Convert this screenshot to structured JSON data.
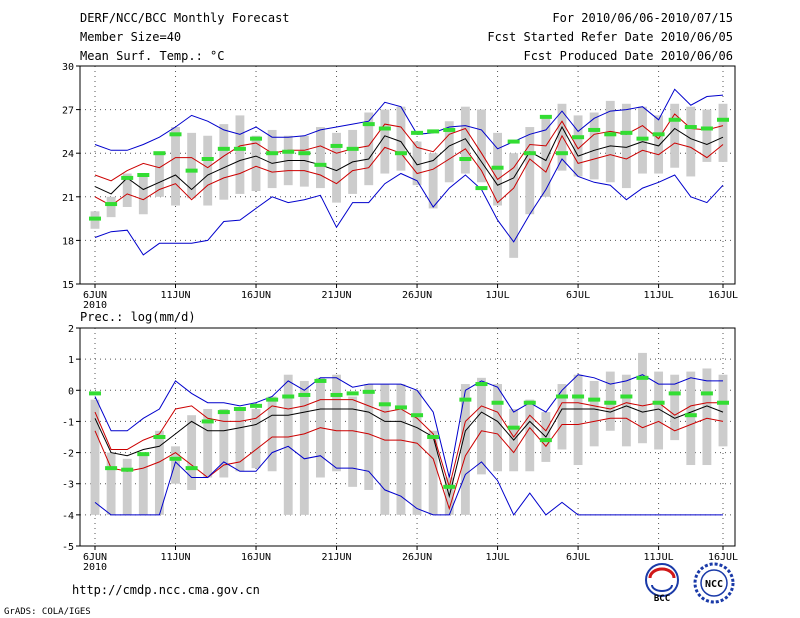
{
  "header": {
    "title": "DERF/NCC/BCC Monthly Forecast",
    "member": "Member Size=40",
    "variable": "Mean Surf. Temp.: °C",
    "period": "For 2010/06/06-2010/07/15",
    "start": "Fcst Started Refer Date 2010/06/05",
    "produced": "Fcst Produced Date 2010/06/06"
  },
  "footer": {
    "url": "http://cmdp.ncc.cma.gov.cn",
    "grads": "GrADS: COLA/IGES",
    "logo_bcc": "BCC",
    "logo_ncc": "NCC"
  },
  "colors": {
    "box": "#cccccc",
    "median": "#33dd33",
    "max_min": "#0000cc",
    "quartile": "#cc0000",
    "mean": "#000000",
    "grid": "#555555"
  },
  "chart_data": [
    {
      "type": "line",
      "title": "Mean Surf. Temp.: °C",
      "xlabel": "",
      "ylabel": "°C",
      "x": [
        1,
        2,
        3,
        4,
        5,
        6,
        7,
        8,
        9,
        10,
        11,
        12,
        13,
        14,
        15,
        16,
        17,
        18,
        19,
        20,
        21,
        22,
        23,
        24,
        25,
        26,
        27,
        28,
        29,
        30,
        31,
        32,
        33,
        34,
        35,
        36,
        37,
        38,
        39,
        40
      ],
      "xticks": [
        {
          "x": 1,
          "label": "6JUN",
          "sub": "2010"
        },
        {
          "x": 6,
          "label": "11JUN"
        },
        {
          "x": 11,
          "label": "16JUN"
        },
        {
          "x": 16,
          "label": "21JUN"
        },
        {
          "x": 21,
          "label": "26JUN"
        },
        {
          "x": 26,
          "label": "1JUL"
        },
        {
          "x": 31,
          "label": "6JUL"
        },
        {
          "x": 36,
          "label": "11JUL"
        },
        {
          "x": 40,
          "label": "16JUL"
        }
      ],
      "ylim": [
        15,
        30
      ],
      "yticks": [
        15,
        18,
        21,
        24,
        27,
        30
      ],
      "grid": true,
      "series": [
        {
          "name": "max",
          "color": "#0000cc",
          "values": [
            24.6,
            24.2,
            24.2,
            24.6,
            25.1,
            25.8,
            26.6,
            26.2,
            25.6,
            25.3,
            25.8,
            25.1,
            25.1,
            25.2,
            25.6,
            25.8,
            26.0,
            26.2,
            27.5,
            27.2,
            25.3,
            25.4,
            25.8,
            25.9,
            25.6,
            24.3,
            24.8,
            25.3,
            25.6,
            26.9,
            25.5,
            26.4,
            26.9,
            27.0,
            27.2,
            26.3,
            28.4,
            27.3,
            27.9,
            28.0
          ]
        },
        {
          "name": "upper_quartile",
          "color": "#cc0000",
          "values": [
            22.5,
            22.1,
            22.8,
            23.3,
            23.0,
            23.7,
            23.7,
            23.0,
            23.8,
            24.5,
            24.7,
            24.0,
            24.2,
            24.2,
            24.5,
            24.0,
            24.3,
            24.5,
            26.0,
            25.8,
            24.4,
            24.1,
            25.3,
            25.7,
            24.0,
            22.2,
            23.0,
            24.6,
            24.5,
            26.2,
            24.3,
            25.3,
            25.5,
            25.3,
            25.9,
            25.0,
            26.7,
            25.7,
            25.6,
            25.9
          ]
        },
        {
          "name": "mean",
          "color": "#000000",
          "values": [
            21.7,
            21.2,
            22.3,
            21.5,
            22.0,
            22.5,
            21.5,
            22.5,
            23.0,
            23.5,
            23.8,
            23.3,
            23.5,
            23.5,
            23.2,
            22.8,
            23.4,
            23.6,
            25.2,
            24.8,
            23.2,
            23.5,
            24.5,
            25.0,
            23.4,
            21.8,
            22.3,
            24.1,
            23.5,
            25.8,
            23.8,
            24.2,
            24.5,
            24.4,
            24.8,
            24.5,
            25.7,
            25.0,
            24.6,
            25.1
          ]
        },
        {
          "name": "lower_quartile",
          "color": "#cc0000",
          "values": [
            21.0,
            20.4,
            21.2,
            20.8,
            21.5,
            21.9,
            20.8,
            21.8,
            22.3,
            22.6,
            23.1,
            22.7,
            22.8,
            22.8,
            22.5,
            21.9,
            22.8,
            23.0,
            24.4,
            24.0,
            22.6,
            22.9,
            23.6,
            24.3,
            22.8,
            20.6,
            21.6,
            23.6,
            22.7,
            25.2,
            23.3,
            23.6,
            23.9,
            23.6,
            24.2,
            23.9,
            24.7,
            24.4,
            23.7,
            24.6
          ]
        },
        {
          "name": "min",
          "color": "#0000cc",
          "values": [
            18.2,
            18.6,
            18.7,
            17.0,
            17.8,
            17.8,
            17.8,
            18.0,
            19.3,
            19.4,
            20.2,
            21.0,
            20.6,
            20.8,
            21.1,
            18.9,
            20.6,
            20.6,
            21.9,
            22.6,
            22.1,
            20.3,
            21.6,
            22.5,
            21.5,
            19.4,
            17.9,
            19.8,
            21.5,
            23.6,
            22.4,
            22.0,
            21.8,
            20.8,
            21.6,
            22.0,
            22.5,
            21.0,
            20.6,
            21.8
          ]
        }
      ],
      "box_low": [
        18.8,
        19.6,
        20.3,
        19.8,
        21.0,
        20.4,
        20.9,
        20.4,
        20.8,
        21.2,
        21.4,
        21.6,
        21.8,
        21.7,
        21.6,
        20.6,
        21.2,
        21.8,
        22.6,
        22.8,
        21.8,
        20.2,
        22.0,
        22.6,
        22.0,
        20.4,
        16.8,
        19.8,
        21.0,
        22.8,
        22.4,
        22.2,
        22.0,
        21.6,
        22.6,
        22.6,
        23.0,
        22.4,
        23.4,
        23.4
      ],
      "box_high": [
        20.0,
        21.0,
        22.6,
        22.6,
        24.0,
        25.8,
        25.4,
        25.2,
        26.0,
        26.6,
        25.2,
        25.6,
        25.2,
        25.2,
        25.8,
        25.4,
        25.6,
        26.8,
        27.0,
        27.2,
        24.8,
        24.0,
        26.2,
        27.2,
        27.0,
        25.4,
        24.0,
        25.8,
        26.5,
        27.4,
        26.6,
        26.8,
        27.6,
        27.4,
        27.2,
        26.6,
        27.4,
        27.2,
        27.0,
        27.4
      ],
      "medians": [
        19.5,
        20.5,
        22.3,
        22.5,
        24.0,
        25.3,
        22.8,
        23.6,
        24.3,
        24.3,
        25.0,
        24.0,
        24.1,
        24.0,
        23.2,
        24.5,
        24.3,
        26.0,
        25.7,
        24.0,
        25.4,
        25.5,
        25.6,
        23.6,
        21.6,
        23.0,
        24.8,
        24.0,
        26.5,
        24.0,
        25.1,
        25.6,
        25.3,
        25.4,
        25.0,
        25.3,
        26.3,
        25.8,
        25.7,
        26.3
      ]
    },
    {
      "type": "line",
      "title": "Prec.: log(mm/d)",
      "xlabel": "",
      "ylabel": "log(mm/d)",
      "x": [
        1,
        2,
        3,
        4,
        5,
        6,
        7,
        8,
        9,
        10,
        11,
        12,
        13,
        14,
        15,
        16,
        17,
        18,
        19,
        20,
        21,
        22,
        23,
        24,
        25,
        26,
        27,
        28,
        29,
        30,
        31,
        32,
        33,
        34,
        35,
        36,
        37,
        38,
        39,
        40
      ],
      "xticks": [
        {
          "x": 1,
          "label": "6JUN",
          "sub": "2010"
        },
        {
          "x": 6,
          "label": "11JUN"
        },
        {
          "x": 11,
          "label": "16JUN"
        },
        {
          "x": 16,
          "label": "21JUN"
        },
        {
          "x": 21,
          "label": "26JUN"
        },
        {
          "x": 26,
          "label": "1JUL"
        },
        {
          "x": 31,
          "label": "6JUL"
        },
        {
          "x": 36,
          "label": "11JUL"
        },
        {
          "x": 40,
          "label": "16JUL"
        }
      ],
      "ylim": [
        -5,
        2
      ],
      "yticks": [
        -5,
        -4,
        -3,
        -2,
        -1,
        0,
        1,
        2
      ],
      "grid": true,
      "series": [
        {
          "name": "max",
          "color": "#0000cc",
          "values": [
            -0.2,
            -1.3,
            -1.3,
            -0.9,
            -0.6,
            0.3,
            -0.1,
            -0.4,
            -0.4,
            -0.5,
            -0.4,
            -0.2,
            0.3,
            0.0,
            0.4,
            0.4,
            0.1,
            0.2,
            0.2,
            0.2,
            0.0,
            -0.7,
            -2.8,
            0.0,
            0.3,
            0.1,
            -0.7,
            -0.4,
            -0.7,
            0.0,
            0.5,
            0.4,
            0.2,
            0.3,
            0.5,
            0.2,
            0.2,
            0.4,
            0.3,
            0.3
          ]
        },
        {
          "name": "upper_quartile",
          "color": "#cc0000",
          "values": [
            -0.7,
            -1.9,
            -1.9,
            -1.6,
            -1.4,
            -0.6,
            -0.5,
            -0.9,
            -1.0,
            -1.0,
            -0.9,
            -0.5,
            -0.6,
            -0.5,
            -0.3,
            -0.3,
            -0.3,
            -0.5,
            -0.7,
            -0.6,
            -0.9,
            -1.4,
            -3.1,
            -1.0,
            -0.5,
            -0.7,
            -1.5,
            -0.8,
            -1.3,
            -0.4,
            -0.4,
            -0.5,
            -0.6,
            -0.4,
            -0.5,
            -0.4,
            -0.8,
            -0.5,
            -0.4,
            -0.4
          ]
        },
        {
          "name": "mean",
          "color": "#000000",
          "values": [
            -0.9,
            -2.0,
            -2.1,
            -1.9,
            -1.8,
            -1.4,
            -1.0,
            -1.3,
            -1.3,
            -1.2,
            -1.1,
            -0.8,
            -0.8,
            -0.7,
            -0.6,
            -0.6,
            -0.6,
            -0.7,
            -1.0,
            -1.0,
            -1.2,
            -1.5,
            -3.4,
            -1.3,
            -0.7,
            -1.0,
            -1.6,
            -1.0,
            -1.5,
            -0.6,
            -0.6,
            -0.6,
            -0.7,
            -0.5,
            -0.7,
            -0.6,
            -0.9,
            -0.7,
            -0.5,
            -0.7
          ]
        },
        {
          "name": "lower_quartile",
          "color": "#cc0000",
          "values": [
            -1.3,
            -2.5,
            -2.6,
            -2.5,
            -2.3,
            -2.0,
            -2.4,
            -2.8,
            -2.4,
            -2.3,
            -1.9,
            -1.5,
            -1.5,
            -1.4,
            -1.2,
            -1.3,
            -1.3,
            -1.4,
            -1.6,
            -1.6,
            -1.7,
            -2.2,
            -3.8,
            -2.1,
            -1.3,
            -1.4,
            -2.0,
            -1.2,
            -1.8,
            -1.1,
            -1.1,
            -1.0,
            -0.9,
            -0.9,
            -1.2,
            -1.0,
            -1.3,
            -1.1,
            -0.9,
            -1.0
          ]
        },
        {
          "name": "min",
          "color": "#0000cc",
          "values": [
            -3.6,
            -4.0,
            -4.0,
            -4.0,
            -4.0,
            -2.3,
            -2.8,
            -2.8,
            -2.3,
            -2.6,
            -2.6,
            -2.0,
            -1.8,
            -2.2,
            -2.1,
            -2.5,
            -2.5,
            -2.6,
            -3.2,
            -3.4,
            -3.8,
            -4.0,
            -4.0,
            -2.7,
            -2.3,
            -2.9,
            -4.0,
            -3.3,
            -4.0,
            -3.6,
            -4.0,
            -4.0,
            -4.0,
            -4.0,
            -4.0,
            -4.0,
            -4.0,
            -4.0,
            -4.0,
            -4.0
          ]
        }
      ],
      "box_low": [
        -4.0,
        -4.0,
        -4.0,
        -4.0,
        -4.0,
        -3.0,
        -3.2,
        -2.8,
        -2.8,
        -2.6,
        -2.5,
        -2.6,
        -4.0,
        -4.0,
        -2.8,
        -2.6,
        -3.1,
        -3.2,
        -4.0,
        -4.0,
        -4.0,
        -4.0,
        -4.0,
        -4.0,
        -2.7,
        -2.6,
        -2.6,
        -2.6,
        -2.3,
        -1.9,
        -2.4,
        -1.8,
        -1.3,
        -1.8,
        -1.7,
        -1.9,
        -1.6,
        -2.4,
        -2.4,
        -1.8
      ],
      "box_high": [
        -0.3,
        -2.0,
        -2.2,
        -2.0,
        -1.3,
        -1.8,
        -0.8,
        -0.6,
        -0.6,
        -0.6,
        -0.6,
        -0.2,
        0.5,
        0.3,
        0.4,
        0.5,
        -0.2,
        0.2,
        0.2,
        0.2,
        0.0,
        -1.3,
        -2.8,
        0.2,
        0.4,
        0.2,
        -0.6,
        -0.3,
        -0.7,
        0.2,
        0.5,
        0.3,
        0.6,
        0.5,
        1.2,
        0.6,
        0.5,
        0.6,
        0.7,
        0.5
      ],
      "medians": [
        -0.1,
        -2.5,
        -2.55,
        -2.05,
        -1.5,
        -2.2,
        -2.5,
        -1.0,
        -0.7,
        -0.6,
        -0.5,
        -0.3,
        -0.2,
        -0.15,
        0.3,
        -0.15,
        -0.1,
        -0.05,
        -0.45,
        -0.55,
        -0.8,
        -1.5,
        -3.1,
        -0.3,
        0.2,
        -0.4,
        -1.2,
        -0.4,
        -1.6,
        -0.2,
        -0.2,
        -0.3,
        -0.4,
        -0.2,
        0.4,
        -0.4,
        -0.1,
        -0.8,
        -0.1,
        -0.4
      ]
    }
  ]
}
